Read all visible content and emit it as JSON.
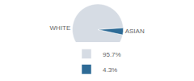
{
  "chart_data": {
    "type": "pie",
    "categories": [
      "WHITE",
      "ASIAN"
    ],
    "values": [
      95.7,
      4.3
    ],
    "value_labels": [
      "95.7%",
      "4.3%"
    ],
    "colors": [
      "#d6dce4",
      "#2e6b96"
    ],
    "legend": "bottom"
  }
}
